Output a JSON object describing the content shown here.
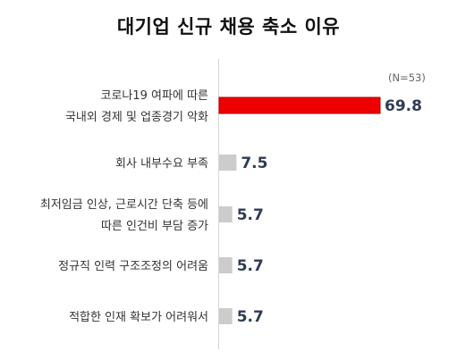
{
  "chart_data": {
    "type": "bar",
    "orientation": "horizontal",
    "title": "대기업 신규 채용 축소 이유",
    "note": "(N=53)",
    "categories": [
      [
        "코로나19 여파에 따른",
        "국내외 경제 및 업종경기 악화"
      ],
      [
        "회사 내부수요 부족"
      ],
      [
        "최저임금 인상, 근로시간 단축 등에",
        "따른 인건비 부담 증가"
      ],
      [
        "정규직 인력 구조조정의 어려움"
      ],
      [
        "적합한 인재 확보가 어려워서"
      ]
    ],
    "values": [
      69.8,
      7.5,
      5.7,
      5.7,
      5.7
    ],
    "value_labels": [
      "69.8",
      "7.5",
      "5.7",
      "5.7",
      "5.7"
    ],
    "colors": {
      "highlight": "#ee0000",
      "highlight_border": "#b00000",
      "default": "#cccccc",
      "value_text": "#2e3b55"
    }
  }
}
